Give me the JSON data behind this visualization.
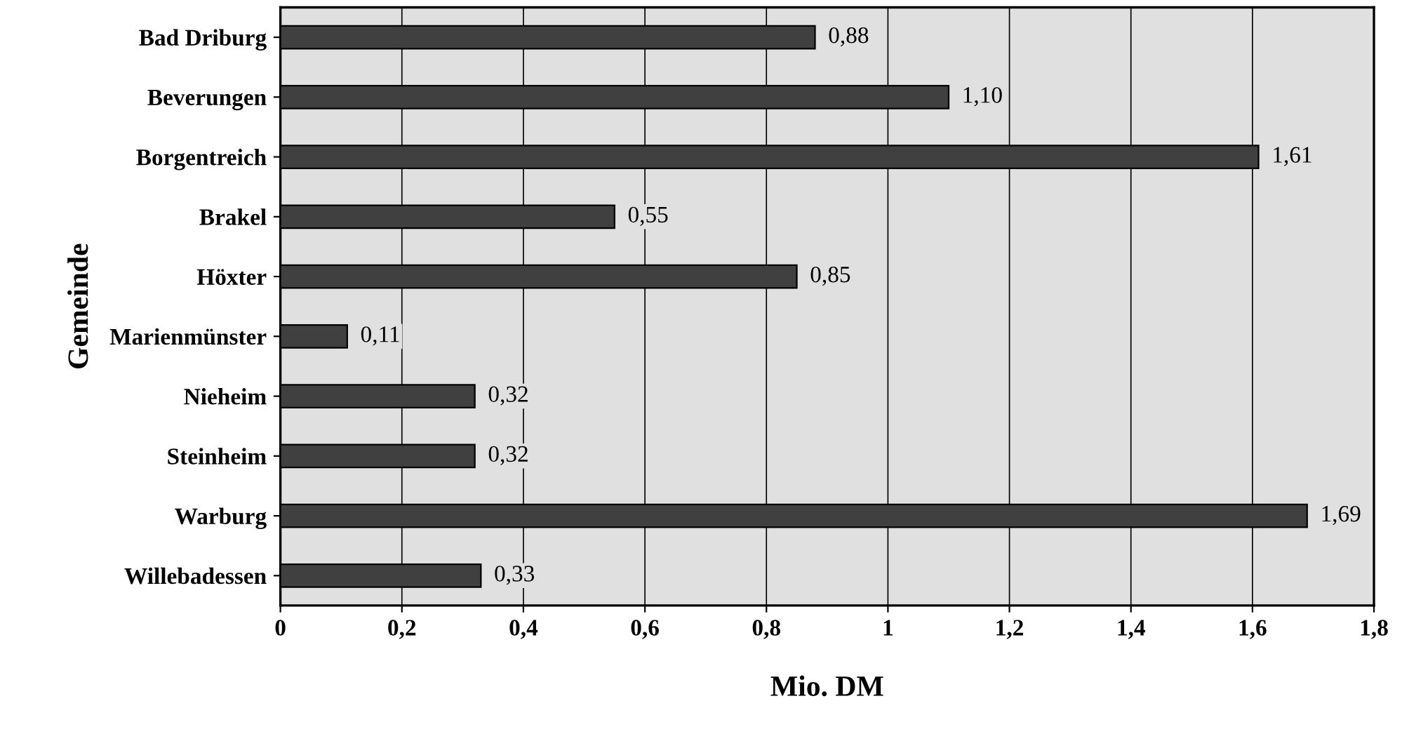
{
  "chart_data": {
    "type": "bar",
    "orientation": "horizontal",
    "xlabel": "Mio. DM",
    "ylabel": "Gemeinde",
    "categories": [
      "Bad Driburg",
      "Beverungen",
      "Borgentreich",
      "Brakel",
      "Höxter",
      "Marienmünster",
      "Nieheim",
      "Steinheim",
      "Warburg",
      "Willebadessen"
    ],
    "values": [
      0.88,
      1.1,
      1.61,
      0.55,
      0.85,
      0.11,
      0.32,
      0.32,
      1.69,
      0.33
    ],
    "value_labels": [
      "0,88",
      "1,10",
      "1,61",
      "0,55",
      "0,85",
      "0,11",
      "0,32",
      "0,32",
      "1,69",
      "0,33"
    ],
    "color": "#404040",
    "xlim": [
      0,
      1.8
    ],
    "xticks": [
      0,
      {
        "value": 0.2,
        "label": "0,2"
      },
      {
        "value": 0.4,
        "label": "0,4"
      },
      {
        "value": 0.6,
        "label": "0,6"
      },
      {
        "value": 0.8,
        "label": "0,8"
      },
      1,
      {
        "value": 1.2,
        "label": "1,2"
      },
      {
        "value": 1.4,
        "label": "1,4"
      },
      {
        "value": 1.6,
        "label": "1,6"
      },
      {
        "value": 1.8,
        "label": "1,8"
      }
    ],
    "grid": "x",
    "legend": false
  }
}
